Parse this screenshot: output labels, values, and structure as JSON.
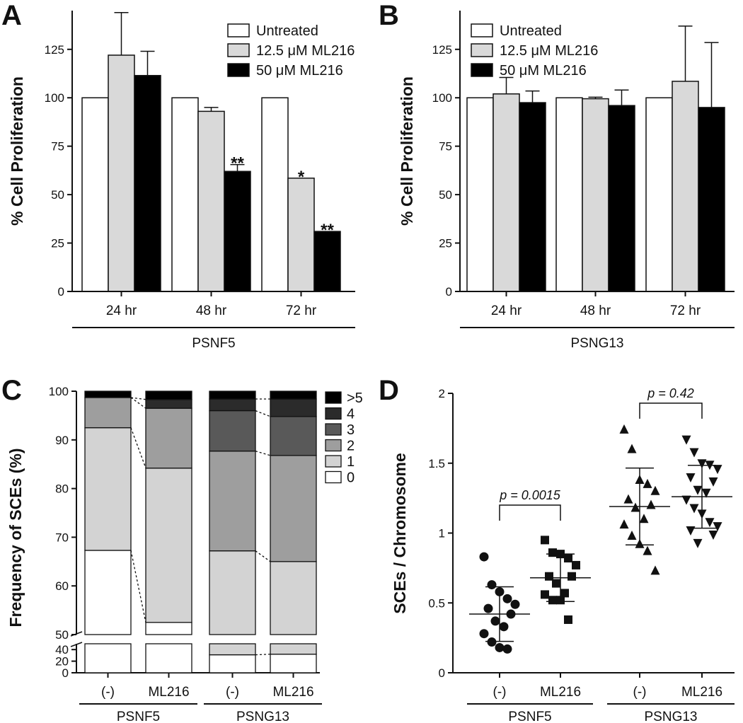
{
  "panels": {
    "a": {
      "letter": "A"
    },
    "b": {
      "letter": "B"
    },
    "c": {
      "letter": "C"
    },
    "d": {
      "letter": "D"
    }
  },
  "chart_data": [
    {
      "panel": "A",
      "type": "bar",
      "ylabel": "% Cell Proliferation",
      "ylim": [
        0,
        145
      ],
      "yticks": [
        0,
        25,
        50,
        75,
        100,
        125
      ],
      "categories": [
        "24 hr",
        "48 hr",
        "72 hr"
      ],
      "group_label": "PSNF5",
      "series": [
        {
          "name": "Untreated",
          "color": "#ffffff",
          "values": [
            100,
            100,
            100
          ],
          "errors": [
            0,
            0,
            0
          ]
        },
        {
          "name": "12.5 μM ML216",
          "color": "#d9d9d9",
          "values": [
            122,
            93,
            58.5
          ],
          "errors": [
            22,
            2,
            0
          ]
        },
        {
          "name": "50 μM ML216",
          "color": "#000000",
          "values": [
            111.5,
            62,
            31
          ],
          "errors": [
            12.5,
            3.5,
            0
          ]
        }
      ],
      "annotations": [
        {
          "text": "**",
          "category": 1,
          "series": 2
        },
        {
          "text": "*",
          "category": 2,
          "series": 1
        },
        {
          "text": "**",
          "category": 2,
          "series": 2
        }
      ],
      "legend": "top-right"
    },
    {
      "panel": "B",
      "type": "bar",
      "ylabel": "% Cell Proliferation",
      "ylim": [
        0,
        145
      ],
      "yticks": [
        0,
        25,
        50,
        75,
        100,
        125
      ],
      "categories": [
        "24 hr",
        "48 hr",
        "72 hr"
      ],
      "group_label": "PSNG13",
      "series": [
        {
          "name": "Untreated",
          "color": "#ffffff",
          "values": [
            100,
            100,
            100
          ],
          "errors": [
            0,
            0,
            0
          ]
        },
        {
          "name": "12.5 μM ML216",
          "color": "#d9d9d9",
          "values": [
            102,
            99.5,
            108.5
          ],
          "errors": [
            8.5,
            0.8,
            28.5
          ]
        },
        {
          "name": "50 μM ML216",
          "color": "#000000",
          "values": [
            97.5,
            96,
            95
          ],
          "errors": [
            6,
            8,
            33.5
          ]
        }
      ],
      "legend": "top-left"
    },
    {
      "panel": "C",
      "type": "bar",
      "stacked": true,
      "ylabel": "Frequency of SCEs (%)",
      "ylim_upper": [
        50,
        100
      ],
      "yticks_upper": [
        50,
        60,
        70,
        80,
        90,
        100
      ],
      "ylim_lower": [
        0,
        50
      ],
      "yticks_lower": [
        0,
        20,
        40
      ],
      "categories": [
        "(-)",
        "ML216",
        "(-)",
        "ML216"
      ],
      "groups": [
        {
          "label": "PSNF5",
          "members": [
            0,
            1
          ]
        },
        {
          "label": "PSNG13",
          "members": [
            2,
            3
          ]
        }
      ],
      "stack_order": [
        "0",
        "1",
        "2",
        "3",
        "4",
        ">5"
      ],
      "colors": {
        "0": "#ffffff",
        "1": "#d3d3d3",
        "2": "#9e9e9e",
        "3": "#595959",
        "4": "#2b2b2b",
        ">5": "#000000"
      },
      "series": [
        {
          "name": "0",
          "values": [
            67.3,
            52.5,
            31,
            32
          ]
        },
        {
          "name": "1",
          "values": [
            25.2,
            31.7,
            36.2,
            33
          ]
        },
        {
          "name": "2",
          "values": [
            6.2,
            12.3,
            20.5,
            21.8
          ]
        },
        {
          "name": "3",
          "values": [
            0,
            0,
            8.3,
            8
          ]
        },
        {
          "name": "4",
          "values": [
            0,
            1.8,
            2.4,
            3.6
          ]
        },
        {
          "name": ">5",
          "values": [
            1.3,
            1.7,
            1.6,
            1.6
          ]
        }
      ],
      "legend_order": [
        ">5",
        "4",
        "3",
        "2",
        "1",
        "0"
      ],
      "legend": "right"
    },
    {
      "panel": "D",
      "type": "scatter",
      "ylabel": "SCEs / Chromosome",
      "ylim": [
        0,
        2
      ],
      "yticks": [
        0,
        0.5,
        1,
        1.5,
        2
      ],
      "categories": [
        "(-)",
        "ML216",
        "(-)",
        "ML216"
      ],
      "groups": [
        {
          "label": "PSNF5",
          "members": [
            0,
            1
          ]
        },
        {
          "label": "PSNG13",
          "members": [
            2,
            3
          ]
        }
      ],
      "series": [
        {
          "name": "PSNF5 (-)",
          "marker": "circle",
          "mean": 0.42,
          "sd": 0.195,
          "values": [
            0.83,
            0.63,
            0.58,
            0.53,
            0.49,
            0.46,
            0.42,
            0.37,
            0.33,
            0.28,
            0.22,
            0.18,
            0.17
          ]
        },
        {
          "name": "PSNF5 ML216",
          "marker": "square",
          "mean": 0.68,
          "sd": 0.17,
          "values": [
            0.95,
            0.86,
            0.85,
            0.82,
            0.77,
            0.69,
            0.69,
            0.64,
            0.57,
            0.56,
            0.52,
            0.52,
            0.38
          ]
        },
        {
          "name": "PSNG13 (-)",
          "marker": "triangle-up",
          "mean": 1.19,
          "sd": 0.275,
          "values": [
            1.74,
            1.6,
            1.38,
            1.35,
            1.3,
            1.24,
            1.2,
            1.18,
            1.1,
            1.06,
            0.98,
            0.92,
            0.87,
            0.73
          ]
        },
        {
          "name": "PSNG13 ML216",
          "marker": "triangle-down",
          "mean": 1.26,
          "sd": 0.225,
          "values": [
            1.67,
            1.58,
            1.5,
            1.49,
            1.46,
            1.4,
            1.37,
            1.31,
            1.29,
            1.24,
            1.18,
            1.14,
            1.08,
            1.05,
            1.02,
            0.99,
            0.93
          ]
        }
      ],
      "comparisons": [
        {
          "label": "p = 0.0015",
          "between": [
            0,
            1
          ]
        },
        {
          "label": "p = 0.42",
          "between": [
            2,
            3
          ]
        }
      ]
    }
  ]
}
